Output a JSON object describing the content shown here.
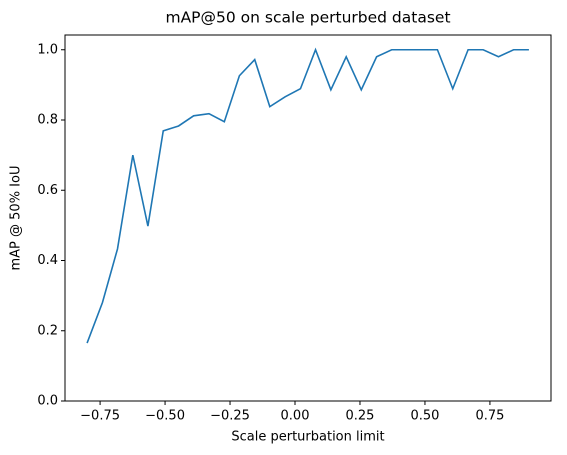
{
  "chart_data": {
    "type": "line",
    "title": "mAP@50 on scale perturbed dataset",
    "x_label": "Scale perturbation limit",
    "y_label": "mAP @ 50% IoU",
    "x": [
      -0.8,
      -0.741,
      -0.683,
      -0.624,
      -0.566,
      -0.507,
      -0.448,
      -0.39,
      -0.331,
      -0.272,
      -0.214,
      -0.155,
      -0.097,
      -0.038,
      0.021,
      0.079,
      0.138,
      0.197,
      0.255,
      0.314,
      0.372,
      0.431,
      0.49,
      0.548,
      0.607,
      0.666,
      0.724,
      0.783,
      0.841,
      0.9
    ],
    "series": [
      {
        "color": "#1f77b4",
        "values": [
          0.165,
          0.28,
          0.433,
          0.7,
          0.498,
          0.769,
          0.783,
          0.812,
          0.818,
          0.795,
          0.926,
          0.972,
          0.838,
          0.866,
          0.889,
          1.0,
          0.886,
          0.98,
          0.886,
          0.98,
          1.0,
          1.0,
          1.0,
          1.0,
          0.889,
          1.0,
          1.0,
          0.98,
          1.0,
          1.0
        ]
      }
    ],
    "xlim": [
      -0.885,
      0.985
    ],
    "ylim": [
      0,
      1.042
    ],
    "xticks": [
      {
        "value": -0.75,
        "label": "−0.75"
      },
      {
        "value": -0.5,
        "label": "−0.50"
      },
      {
        "value": -0.25,
        "label": "−0.25"
      },
      {
        "value": 0,
        "label": "0.00"
      },
      {
        "value": 0.25,
        "label": "0.25"
      },
      {
        "value": 0.5,
        "label": "0.50"
      },
      {
        "value": 0.75,
        "label": "0.75"
      }
    ],
    "yticks": [
      {
        "value": 0,
        "label": "0.0"
      },
      {
        "value": 0.2,
        "label": "0.2"
      },
      {
        "value": 0.4,
        "label": "0.4"
      },
      {
        "value": 0.6,
        "label": "0.6"
      },
      {
        "value": 0.8,
        "label": "0.8"
      },
      {
        "value": 1.0,
        "label": "1.0"
      }
    ]
  }
}
